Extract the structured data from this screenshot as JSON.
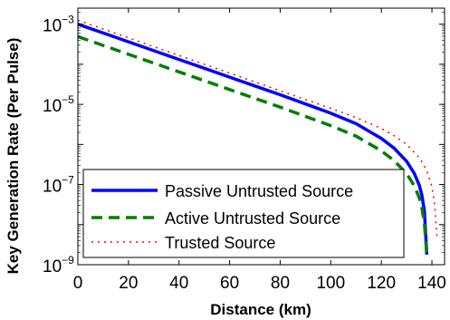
{
  "chart_data": {
    "type": "line",
    "xlabel": "Distance (km)",
    "ylabel": "Key Generation Rate (Per Pulse)",
    "xlim": [
      0,
      145
    ],
    "ylim_log10": [
      -9,
      -2.6
    ],
    "yscale": "log",
    "grid": false,
    "legend_position": "lower-left",
    "x_ticks": [
      0,
      20,
      40,
      60,
      80,
      100,
      120,
      140
    ],
    "x_tick_labels": [
      "0",
      "20",
      "40",
      "60",
      "80",
      "100",
      "120",
      "140"
    ],
    "y_ticks_exponent": [
      -9,
      -7,
      -5,
      -3
    ],
    "y_tick_base": "10",
    "series": [
      {
        "name": "Passive Untrusted Source",
        "color": "#0000ff",
        "style": "solid",
        "x": [
          0,
          10,
          20,
          30,
          40,
          50,
          60,
          70,
          80,
          90,
          100,
          110,
          120,
          125,
          130,
          133,
          135,
          136,
          137,
          138
        ],
        "log10_y": [
          -3.0,
          -3.22,
          -3.44,
          -3.66,
          -3.88,
          -4.1,
          -4.32,
          -4.54,
          -4.76,
          -4.99,
          -5.22,
          -5.48,
          -5.85,
          -6.09,
          -6.42,
          -6.72,
          -7.02,
          -7.26,
          -7.66,
          -8.75
        ]
      },
      {
        "name": "Active Untrusted Source",
        "color": "#007f00",
        "style": "dashed",
        "x": [
          0,
          10,
          20,
          30,
          40,
          50,
          60,
          70,
          80,
          90,
          100,
          110,
          120,
          125,
          130,
          133,
          135,
          136,
          137,
          138
        ],
        "log10_y": [
          -3.31,
          -3.53,
          -3.75,
          -3.97,
          -4.19,
          -4.41,
          -4.63,
          -4.85,
          -5.07,
          -5.3,
          -5.53,
          -5.79,
          -6.16,
          -6.4,
          -6.73,
          -7.03,
          -7.33,
          -7.57,
          -7.97,
          -8.75
        ]
      },
      {
        "name": "Trusted Source",
        "color": "#ff0000",
        "style": "dotted",
        "x": [
          0,
          10,
          20,
          30,
          40,
          50,
          60,
          70,
          80,
          90,
          100,
          110,
          120,
          125,
          130,
          135,
          138,
          140,
          141,
          142
        ],
        "log10_y": [
          -2.9,
          -3.12,
          -3.34,
          -3.56,
          -3.78,
          -4.0,
          -4.22,
          -4.44,
          -4.66,
          -4.88,
          -5.1,
          -5.33,
          -5.6,
          -5.78,
          -6.0,
          -6.33,
          -6.65,
          -7.05,
          -7.45,
          -8.3
        ]
      }
    ]
  }
}
